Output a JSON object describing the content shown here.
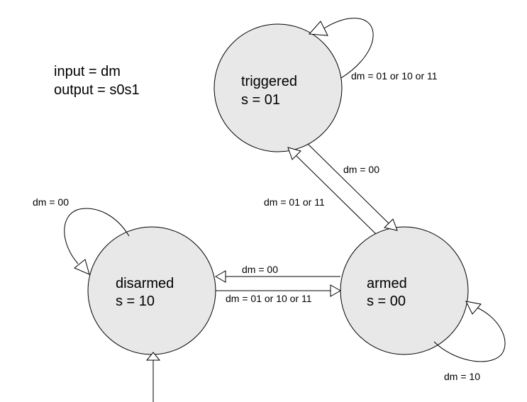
{
  "legend": {
    "input_line": "input = dm",
    "output_line": "output = s0s1"
  },
  "states": {
    "triggered": {
      "name": "triggered",
      "output": "s = 01"
    },
    "disarmed": {
      "name": "disarmed",
      "output": "s = 10"
    },
    "armed": {
      "name": "armed",
      "output": "s = 00"
    }
  },
  "transitions": {
    "triggered_self": "dm = 01 or 10 or 11",
    "triggered_to_armed": "dm = 00",
    "armed_to_triggered": "dm = 01 or 11",
    "disarmed_self": "dm = 00",
    "armed_to_disarmed": "dm = 00",
    "disarmed_to_armed": "dm = 01 or 10 or 11",
    "armed_self": "dm = 10"
  },
  "colors": {
    "state_fill": "#e8e8e8",
    "stroke": "#000000",
    "background": "#ffffff"
  }
}
